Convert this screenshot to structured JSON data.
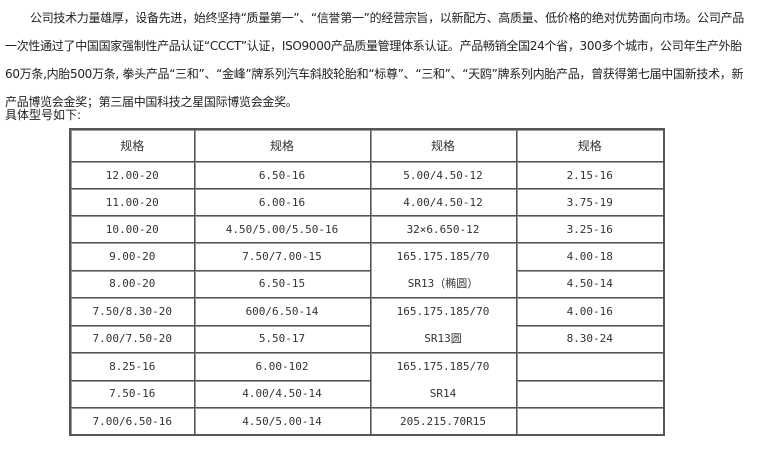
{
  "paragraph": "公司技术力量雄厚，设备先进，始终坚持“质量第一”、“信誉第一”的经营宗旨，以新配方、高质量、低价格的绝对优势面向市场。公司产品一次性通过了中国国家强制性产品认证“CCCT”认证，ISO9000产品质量管理体系认证。产品畅销全国24个省，300多个城市，公司年生产外胎60万条,内胎500万条, 拳头产品“三和”、“金峰”牌系列汽车斜胶轮胎和“标尊”、“三和”、“天鸥”牌系列内胎产品，曾获得第七届中国新技术，新产品博览会金奖；第三届中国科技之星国际博览会金奖。",
  "intro": "具体型号如下:",
  "table": {
    "headers": [
      "规格",
      "规格",
      "规格",
      "规格"
    ],
    "col1": [
      "12.00-20",
      "11.00-20",
      "10.00-20",
      "9.00-20",
      "8.00-20",
      "7.50/8.30-20",
      "7.00/7.50-20",
      "8.25-16",
      "7.50-16",
      "7.00/6.50-16"
    ],
    "col2": [
      "6.50-16",
      "6.00-16",
      "4.50/5.00/5.50-16",
      "7.50/7.00-15",
      "6.50-15",
      "600/6.50-14",
      "5.50-17",
      "6.00-102",
      "4.00/4.50-14",
      "4.50/5.00-14"
    ],
    "col3": [
      "5.00/4.50-12",
      "4.00/4.50-12",
      "32×6.650-12",
      "165.175.185/70",
      "SR13（椭圆）",
      "165.175.185/70",
      "SR13圆",
      "165.175.185/70",
      "SR14",
      "205.215.70R15"
    ],
    "col4": [
      "2.15-16",
      "3.75-19",
      "3.25-16",
      "4.00-18",
      "4.50-14",
      "4.00-16",
      "8.30-24",
      "",
      "",
      ""
    ]
  }
}
